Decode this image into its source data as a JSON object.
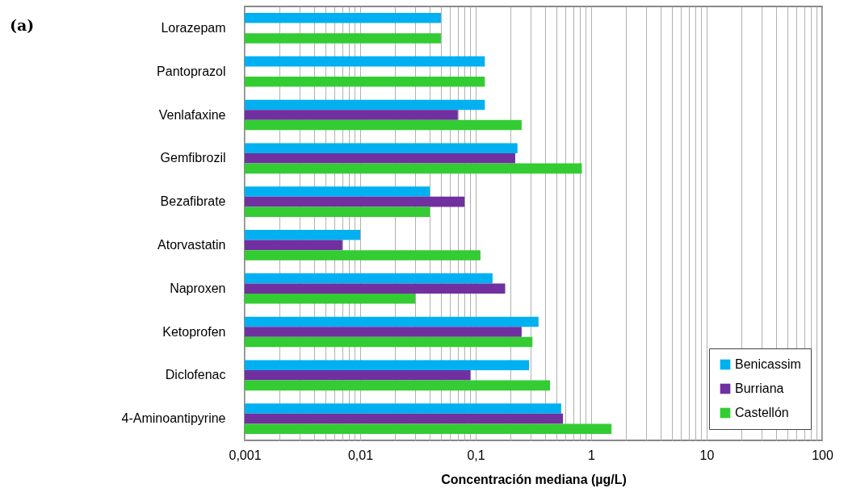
{
  "chart_data": {
    "type": "bar",
    "orientation": "horizontal",
    "log": "x",
    "categories": [
      "Lorazepam",
      "Pantoprazol",
      "Venlafaxine",
      "Gemfibrozil",
      "Bezafibrate",
      "Atorvastatin",
      "Naproxen",
      "Ketoprofen",
      "Diclofenac",
      "4-Aminoantipyrine"
    ],
    "series": [
      {
        "name": "Benicassim",
        "color": "#00b0f0",
        "values": [
          0.05,
          0.12,
          0.12,
          0.23,
          0.04,
          0.01,
          0.14,
          0.35,
          0.29,
          0.55
        ]
      },
      {
        "name": "Burriana",
        "color": "#7030a0",
        "values": [
          null,
          null,
          0.07,
          0.22,
          0.08,
          0.007,
          0.18,
          0.25,
          0.09,
          0.57
        ]
      },
      {
        "name": "Castellón",
        "color": "#33cc33",
        "values": [
          0.05,
          0.12,
          0.25,
          0.83,
          0.04,
          0.11,
          0.03,
          0.31,
          0.44,
          1.5
        ]
      }
    ],
    "xlim": [
      0.001,
      100
    ],
    "xticks": [
      {
        "value": 0.001,
        "label": "0,001"
      },
      {
        "value": 0.01,
        "label": "0,01"
      },
      {
        "value": 0.1,
        "label": "0,1"
      },
      1,
      10,
      100
    ],
    "xlabel": "Concentración mediana (µg/L)",
    "grid": "x",
    "legend": "bottom right",
    "annotations": [
      "(a)"
    ]
  }
}
